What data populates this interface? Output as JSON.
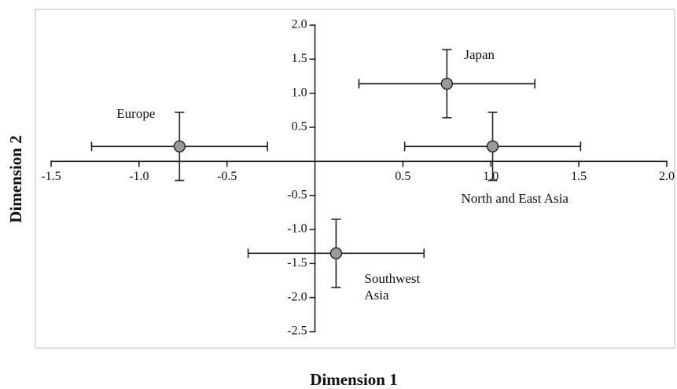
{
  "chart_data": {
    "type": "scatter",
    "x_label": "Dimension 1",
    "y_label": "Dimension 2",
    "labels": [
      "Europe",
      "Japan",
      "North and East Asia",
      "Southwest Asia"
    ],
    "x": [
      -0.77,
      0.75,
      1.01,
      0.12
    ],
    "y": [
      0.22,
      1.14,
      0.22,
      -1.35
    ],
    "xerr": [
      0.5,
      0.5,
      0.5,
      0.5
    ],
    "yerr": [
      0.5,
      0.5,
      0.5,
      0.5
    ],
    "color": "#9a9a9a",
    "xlim": [
      -1.5,
      2.0
    ],
    "ylim": [
      -2.5,
      2.0
    ],
    "xticks": [
      -1.5,
      {
        "value": -1.0,
        "label": "-1.0"
      },
      -0.5,
      0.5,
      {
        "value": 1.0,
        "label": "1.0"
      },
      1.5,
      {
        "value": 2.0,
        "label": "2.0"
      }
    ],
    "yticks": [
      {
        "value": 2.0,
        "label": "2.0"
      },
      1.5,
      {
        "value": 1.0,
        "label": "1.0"
      },
      0.5,
      -0.5,
      {
        "value": -1.0,
        "label": "-1.0"
      },
      -1.5,
      {
        "value": -2.0,
        "label": "-2.0"
      },
      -2.5
    ]
  }
}
